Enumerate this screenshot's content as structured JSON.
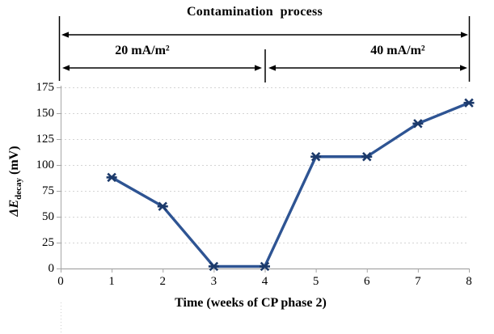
{
  "figure": {
    "background": "#ffffff"
  },
  "annotations": {
    "title": "Contamination  process",
    "left_label": "20 mA/m²",
    "right_label": "40 mA/m²"
  },
  "chart_data": {
    "type": "line",
    "title": "Contamination process",
    "xlabel": "Time (weeks of CP phase 2)",
    "ylabel": "ΔE_decay (mV)",
    "ylabel_parts": {
      "main": "ΔE",
      "sub": "decay",
      "unit": " (mV)"
    },
    "x": [
      1,
      2,
      3,
      4,
      5,
      6,
      7,
      8
    ],
    "series": [
      {
        "name": "ΔE decay",
        "values": [
          88,
          60,
          2,
          2,
          108,
          108,
          140,
          160
        ]
      }
    ],
    "x_ticks": [
      0,
      1,
      2,
      3,
      4,
      5,
      6,
      7,
      8
    ],
    "y_ticks": [
      0,
      25,
      50,
      75,
      100,
      125,
      150,
      175
    ],
    "xlim": [
      0,
      8
    ],
    "ylim": [
      0,
      175
    ],
    "grid": true,
    "legend": false,
    "marker": "star",
    "phase_annotations": [
      {
        "label": "Contamination  process",
        "span_weeks": [
          0,
          8
        ]
      },
      {
        "label": "20 mA/m²",
        "span_weeks": [
          0,
          4
        ]
      },
      {
        "label": "40 mA/m²",
        "span_weeks": [
          4,
          8
        ]
      }
    ],
    "colors": {
      "line": "#2e5493",
      "marker": "#1c3a6b",
      "grid": "#d4d4d4",
      "axis": "#a6a6a6",
      "annotation": "#000000",
      "text": "#000000"
    }
  }
}
